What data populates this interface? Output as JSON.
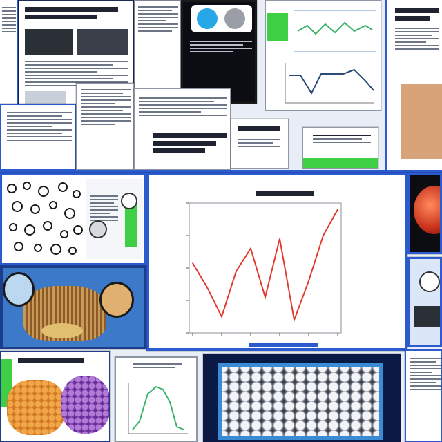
{
  "tiles": {
    "collage": {
      "kind": "screenshot-collage",
      "theme": "scientific posters and printouts"
    }
  },
  "chart_data": [
    {
      "type": "line",
      "x": [
        0,
        1,
        2,
        3,
        4,
        5,
        6,
        7,
        8,
        9,
        10
      ],
      "values": [
        63,
        48,
        30,
        58,
        72,
        42,
        78,
        28,
        52,
        80,
        96
      ],
      "ylim": [
        20,
        100
      ],
      "grid": false,
      "colors": {
        "series": "#e23a2e"
      },
      "title": "",
      "xlabel": "",
      "ylabel": ""
    }
  ],
  "colors": {
    "background": "#e9eef6",
    "blue_frame": "#2c5bd0",
    "navy_frame": "#0a1a44",
    "green_accent": "#3fcf45",
    "red_line": "#e23a2e"
  },
  "icons": [
    "bug-icon",
    "tomato-icon",
    "grape-icon",
    "cell-grid-icon"
  ]
}
